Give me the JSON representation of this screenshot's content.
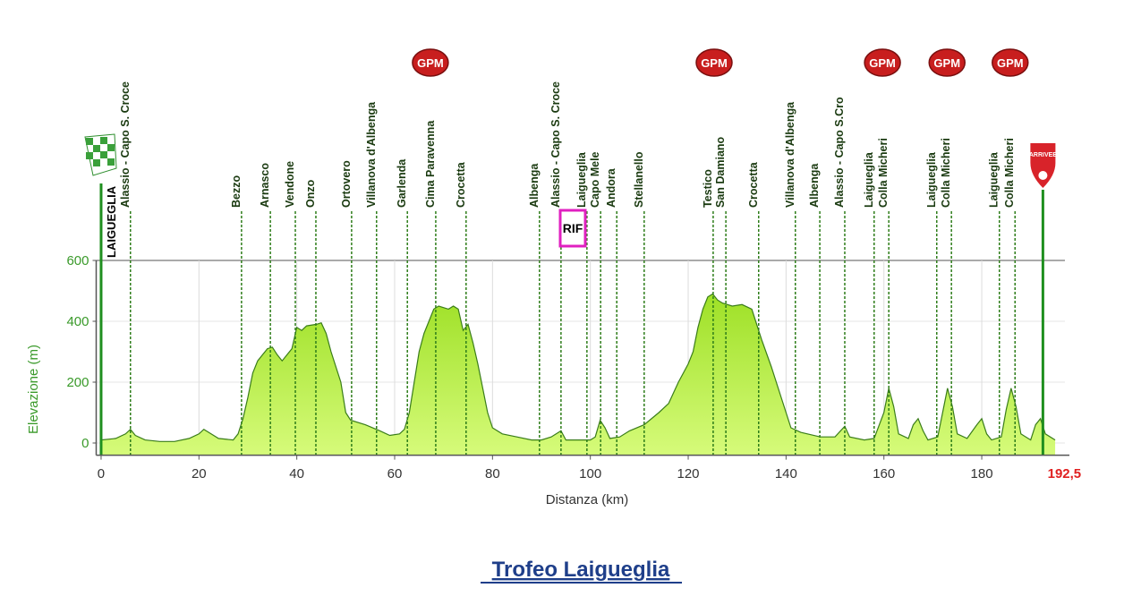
{
  "chart_data": {
    "type": "area",
    "title": "Trofeo Laigueglia",
    "x_label": "Distanza (km)",
    "y_label": "Elevazione (m)",
    "xlim": [
      -1,
      197
    ],
    "ylim": [
      -40,
      600
    ],
    "xticks": [
      0,
      20,
      40,
      60,
      80,
      100,
      120,
      140,
      160,
      180
    ],
    "yticks": [
      0,
      200,
      400,
      600
    ],
    "grid": true,
    "color": "#b5f03c",
    "x": [
      0,
      3,
      5,
      6,
      7,
      9,
      12,
      15,
      18,
      20,
      21,
      22,
      24,
      27,
      28,
      29,
      30,
      31,
      32,
      33,
      34,
      35,
      36,
      37,
      38,
      39,
      40,
      41,
      42,
      44,
      45,
      46,
      47,
      49,
      50,
      51,
      54,
      57,
      59,
      61,
      62,
      63,
      64,
      65,
      66,
      67,
      68,
      69,
      71,
      72,
      73,
      74,
      75,
      76,
      77,
      78,
      79,
      80,
      82,
      85,
      88,
      90,
      92,
      94,
      95,
      100,
      101,
      102,
      103,
      104,
      106,
      108,
      111,
      114,
      116,
      118,
      120,
      121,
      122,
      123,
      124,
      125,
      126,
      127,
      129,
      131,
      133,
      134,
      135,
      137,
      139,
      141,
      143,
      147,
      150,
      152,
      153,
      156,
      158,
      160,
      161,
      162,
      163,
      165,
      166,
      167,
      168,
      169,
      171,
      172,
      173,
      174,
      175,
      177,
      179,
      180,
      181,
      182,
      184,
      185,
      186,
      187,
      188,
      190,
      191,
      192,
      193,
      195
    ],
    "values": [
      10,
      15,
      30,
      45,
      25,
      10,
      5,
      5,
      15,
      30,
      45,
      35,
      15,
      10,
      30,
      80,
      150,
      230,
      270,
      290,
      310,
      315,
      290,
      270,
      290,
      310,
      380,
      370,
      385,
      390,
      395,
      360,
      300,
      200,
      100,
      75,
      60,
      40,
      25,
      30,
      45,
      100,
      200,
      300,
      360,
      400,
      440,
      450,
      440,
      450,
      440,
      370,
      390,
      330,
      260,
      180,
      100,
      50,
      30,
      20,
      10,
      10,
      20,
      40,
      10,
      10,
      20,
      75,
      50,
      15,
      20,
      40,
      60,
      100,
      130,
      200,
      260,
      300,
      380,
      440,
      480,
      490,
      470,
      460,
      450,
      455,
      440,
      390,
      340,
      250,
      150,
      50,
      35,
      20,
      20,
      55,
      20,
      10,
      15,
      100,
      180,
      120,
      30,
      15,
      60,
      80,
      40,
      10,
      20,
      100,
      180,
      120,
      30,
      15,
      60,
      80,
      30,
      10,
      20,
      110,
      180,
      120,
      30,
      10,
      60,
      80,
      30,
      10
    ],
    "start": {
      "label": "LAIGUEGLIA",
      "x": 0
    },
    "finish": {
      "label": "ARRIVEE",
      "x": 192.5,
      "x_label": "192,5"
    },
    "markers": [
      {
        "label": "Alassio - Capo S. Croce",
        "x": 6.0
      },
      {
        "label": "Bezzo",
        "x": 28.7
      },
      {
        "label": "Arnasco",
        "x": 34.6
      },
      {
        "label": "Vendone",
        "x": 39.7
      },
      {
        "label": "Onzo",
        "x": 43.9
      },
      {
        "label": "Ortovero",
        "x": 51.2
      },
      {
        "label": "Villanova d'Albenga",
        "x": 56.3
      },
      {
        "label": "Garlenda",
        "x": 62.6
      },
      {
        "label": "Cima Paravenna",
        "x": 68.4
      },
      {
        "label": "Crocetta",
        "x": 74.6
      },
      {
        "label": "Albenga",
        "x": 89.6
      },
      {
        "label": "Alassio - Capo S. Croce",
        "x": 94.0
      },
      {
        "label": "Laigueglia",
        "x": 99.3
      },
      {
        "label": "Capo Mele",
        "x": 102.1
      },
      {
        "label": "Andora",
        "x": 105.4
      },
      {
        "label": "Stellanello",
        "x": 111.0
      },
      {
        "label": "Testico",
        "x": 125.1
      },
      {
        "label": "San Damiano",
        "x": 127.7
      },
      {
        "label": "Crocetta",
        "x": 134.4
      },
      {
        "label": "Villanova d'Albenga",
        "x": 141.9
      },
      {
        "label": "Albenga",
        "x": 146.9
      },
      {
        "label": "Alassio - Capo S.Cro",
        "x": 152.0
      },
      {
        "label": "Laigueglia",
        "x": 158.0
      },
      {
        "label": "Colla Micheri",
        "x": 161.0
      },
      {
        "label": "Laigueglia",
        "x": 170.8
      },
      {
        "label": "Colla Micheri",
        "x": 173.8
      },
      {
        "label": "Laigueglia",
        "x": 183.6
      },
      {
        "label": "Colla Micheri",
        "x": 186.8
      }
    ],
    "gpm": [
      {
        "label": "GPM",
        "x": 67.3
      },
      {
        "label": "GPM",
        "x": 125.3
      },
      {
        "label": "GPM",
        "x": 159.7
      },
      {
        "label": "GPM",
        "x": 172.9
      },
      {
        "label": "GPM",
        "x": 185.8
      }
    ],
    "rif": {
      "label": "RIF",
      "x": 96.4
    }
  }
}
